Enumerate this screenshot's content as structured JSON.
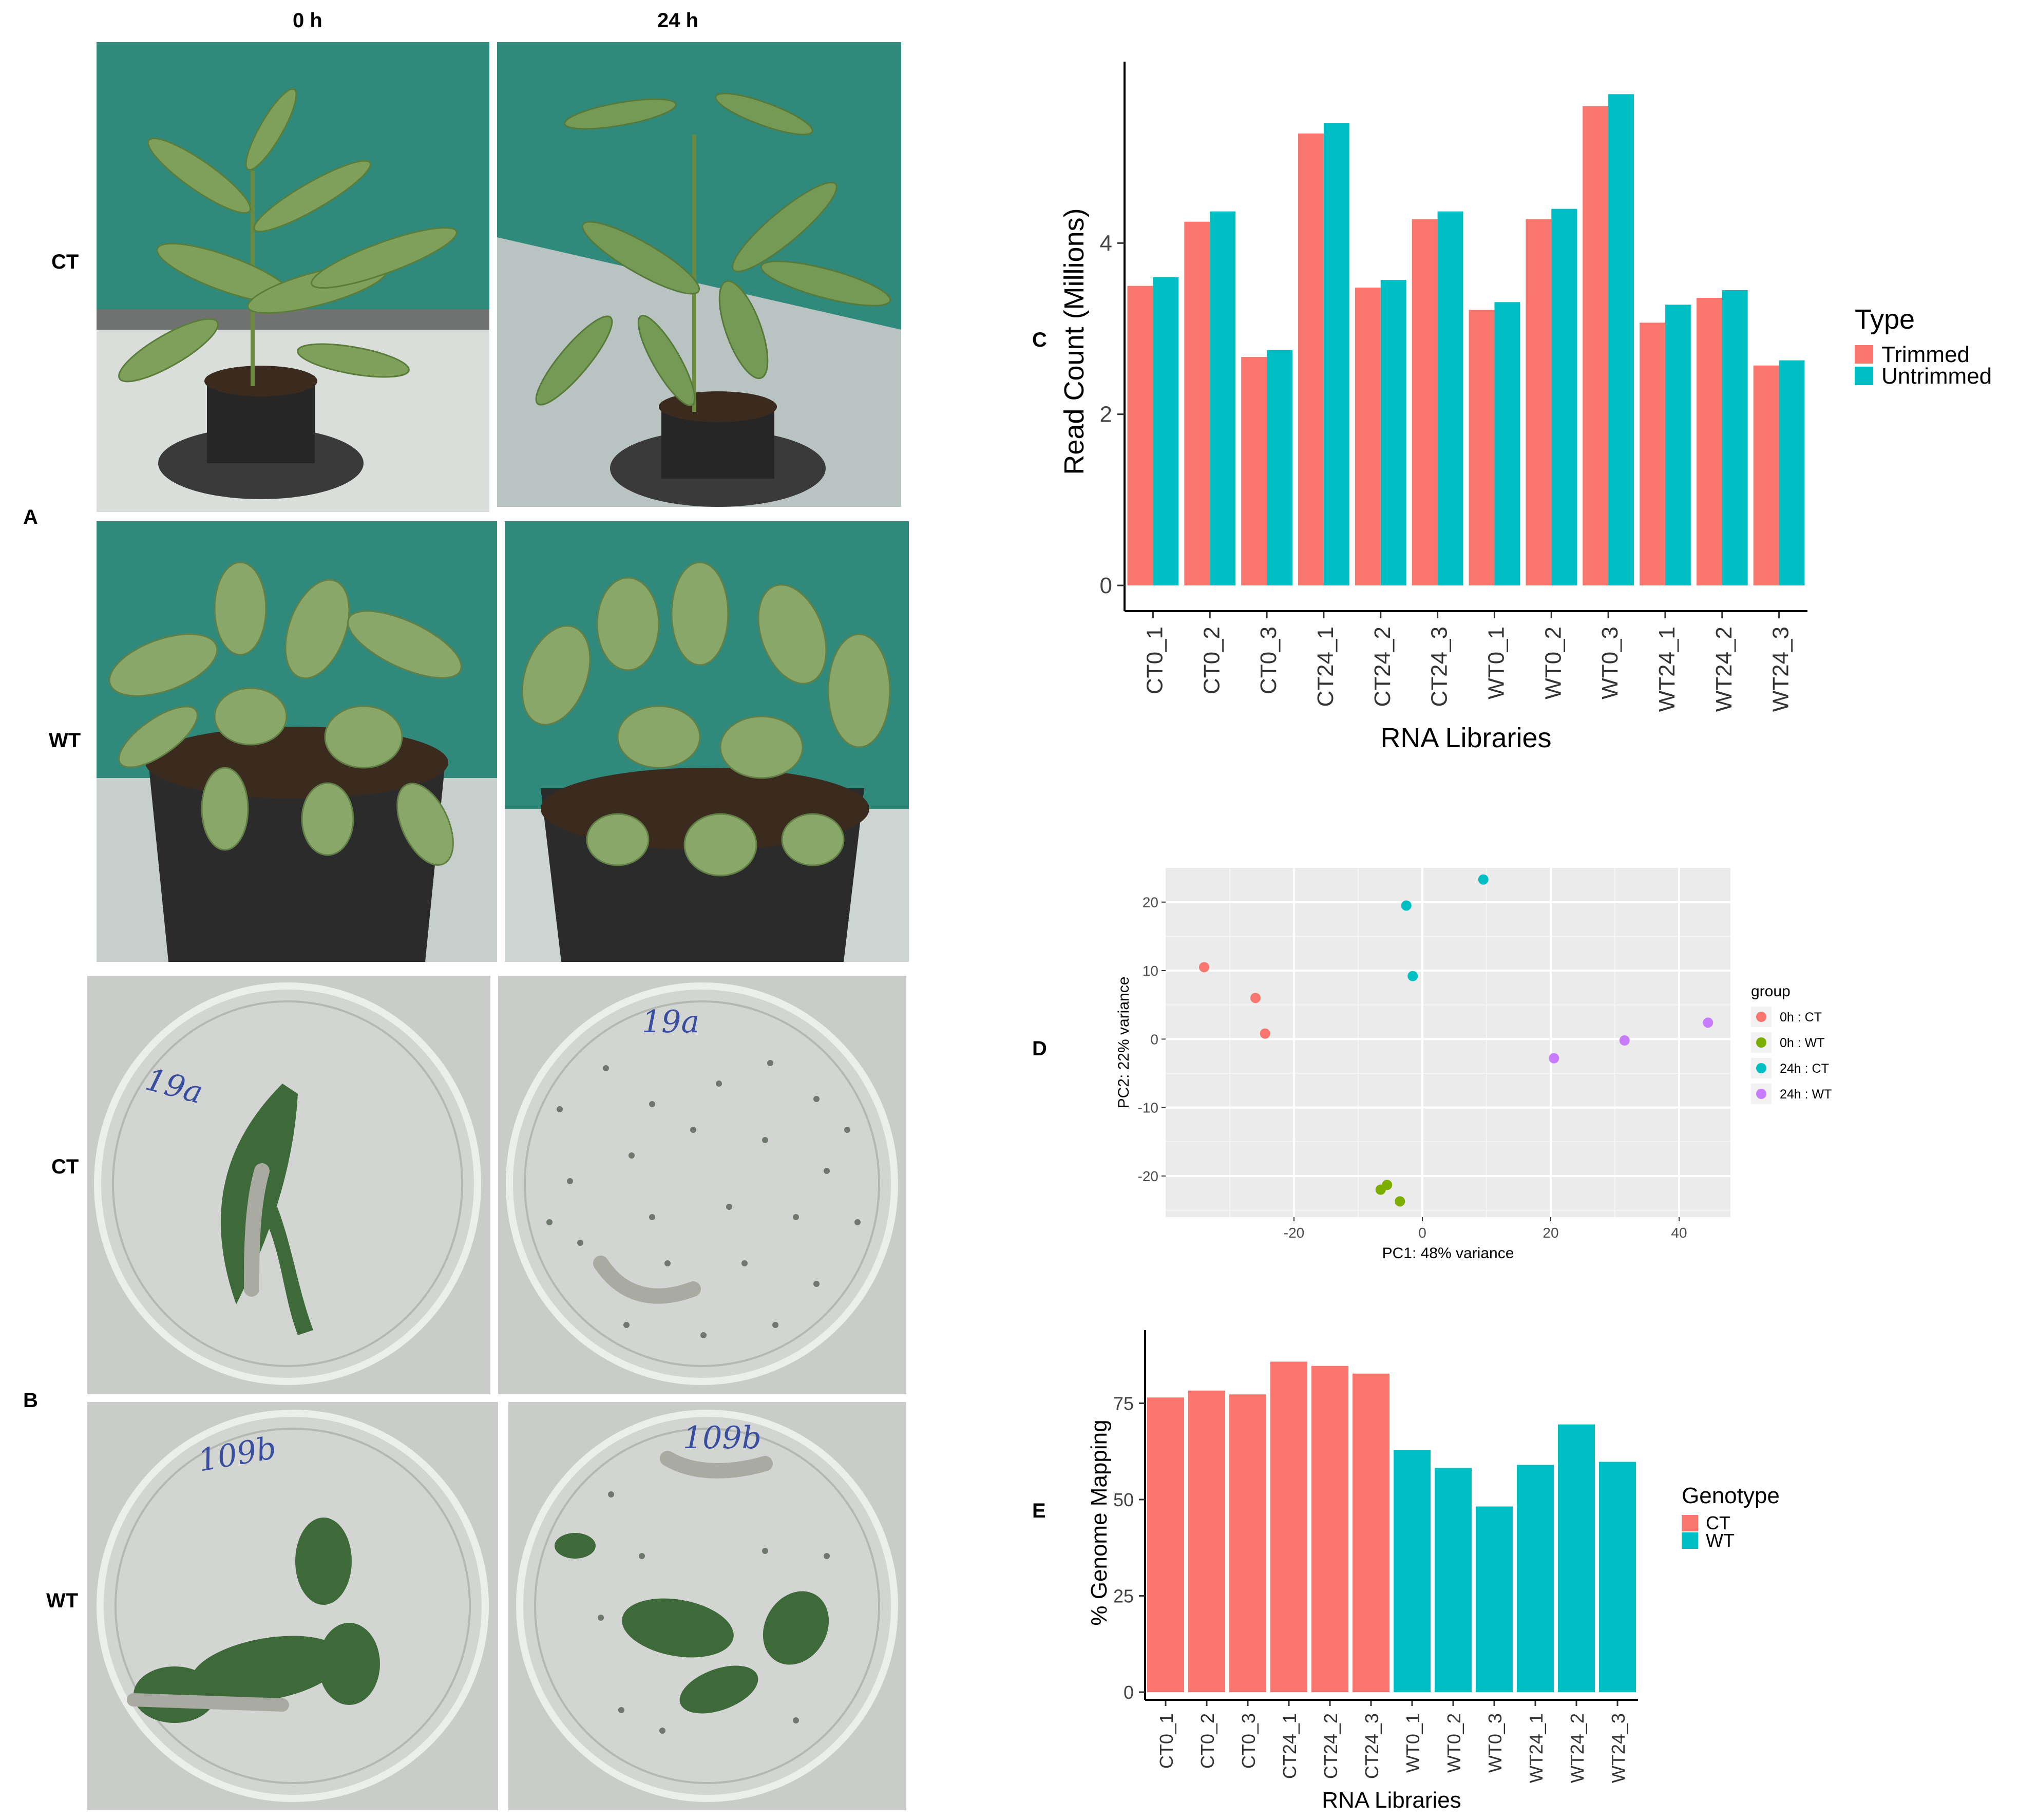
{
  "panels": {
    "A": "A",
    "B": "B",
    "C": "C",
    "D": "D",
    "E": "E"
  },
  "photo_grid": {
    "col_headers": [
      "0 h",
      "24 h"
    ],
    "row_labels_A": [
      "CT",
      "WT"
    ],
    "row_labels_B": [
      "CT",
      "WT"
    ],
    "dish_marks": [
      "19a",
      "19a",
      "109b",
      "109b"
    ],
    "colors": {
      "wall": "#2f8a7c",
      "leaf": "#6f9a4f",
      "soil": "#3b2a1e",
      "pot": "#2b2b2b",
      "dish_bg": "#c9ccc9",
      "bench": "#e9ece8"
    }
  },
  "chart_data": [
    {
      "id": "C",
      "type": "bar",
      "categories": [
        "CT0_1",
        "CT0_2",
        "CT0_3",
        "CT24_1",
        "CT24_2",
        "CT24_3",
        "WT0_1",
        "WT0_2",
        "WT0_3",
        "WT24_1",
        "WT24_2",
        "WT24_3"
      ],
      "series": [
        {
          "name": "Trimmed",
          "color": "#f8766d",
          "values": [
            3.5,
            4.25,
            2.67,
            5.28,
            3.48,
            4.28,
            3.22,
            4.28,
            5.6,
            3.07,
            3.36,
            2.57
          ]
        },
        {
          "name": "Untrimmed",
          "color": "#00bfc4",
          "values": [
            3.6,
            4.37,
            2.75,
            5.4,
            3.57,
            4.37,
            3.31,
            4.4,
            5.74,
            3.28,
            3.45,
            2.63
          ]
        }
      ],
      "xlabel": "RNA Libraries",
      "ylabel": "Read Count (Millions)",
      "yticks": [
        0,
        2,
        4
      ],
      "ylim": [
        -0.3,
        6.0
      ],
      "legend_title": "Type",
      "legend_position": "right",
      "grid": false
    },
    {
      "id": "D",
      "type": "scatter",
      "xlabel": "PC1: 48% variance",
      "ylabel": "PC2: 22% variance",
      "xticks": [
        -20,
        0,
        20,
        40
      ],
      "yticks": [
        -20,
        -10,
        0,
        10,
        20
      ],
      "xlim": [
        -40,
        48
      ],
      "ylim": [
        -26,
        25
      ],
      "legend_title": "group",
      "legend_position": "right",
      "grid": true,
      "series": [
        {
          "name": "0h : CT",
          "color": "#f8766d",
          "points": [
            [
              -34,
              10.5
            ],
            [
              -26,
              6
            ],
            [
              -24.5,
              0.8
            ]
          ]
        },
        {
          "name": "0h : WT",
          "color": "#7cae00",
          "points": [
            [
              -6.5,
              -22
            ],
            [
              -5.5,
              -21.3
            ],
            [
              -3.5,
              -23.7
            ]
          ]
        },
        {
          "name": "24h : CT",
          "color": "#00bfc4",
          "points": [
            [
              -2.5,
              19.5
            ],
            [
              9.5,
              23.3
            ],
            [
              -1.5,
              9.2
            ]
          ]
        },
        {
          "name": "24h : WT",
          "color": "#c77cff",
          "points": [
            [
              20.5,
              -2.8
            ],
            [
              31.5,
              -0.2
            ],
            [
              44.5,
              2.4
            ]
          ]
        }
      ]
    },
    {
      "id": "E",
      "type": "bar",
      "categories": [
        "CT0_1",
        "CT0_2",
        "CT0_3",
        "CT24_1",
        "CT24_2",
        "CT24_3",
        "WT0_1",
        "WT0_2",
        "WT0_3",
        "WT24_1",
        "WT24_2",
        "WT24_3"
      ],
      "values": [
        76.5,
        78.3,
        77.3,
        85.8,
        84.7,
        82.7,
        62.8,
        58.2,
        48.2,
        59,
        69.5,
        59.8
      ],
      "groups": [
        "CT",
        "CT",
        "CT",
        "CT",
        "CT",
        "CT",
        "WT",
        "WT",
        "WT",
        "WT",
        "WT",
        "WT"
      ],
      "series": [
        {
          "name": "CT",
          "color": "#f8766d"
        },
        {
          "name": "WT",
          "color": "#00bfc4"
        }
      ],
      "xlabel": "RNA Libraries",
      "ylabel": "% Genome Mapping",
      "yticks": [
        0,
        25,
        50,
        75
      ],
      "ylim": [
        -2,
        90
      ],
      "legend_title": "Genotype",
      "legend_position": "right",
      "grid": false
    }
  ]
}
